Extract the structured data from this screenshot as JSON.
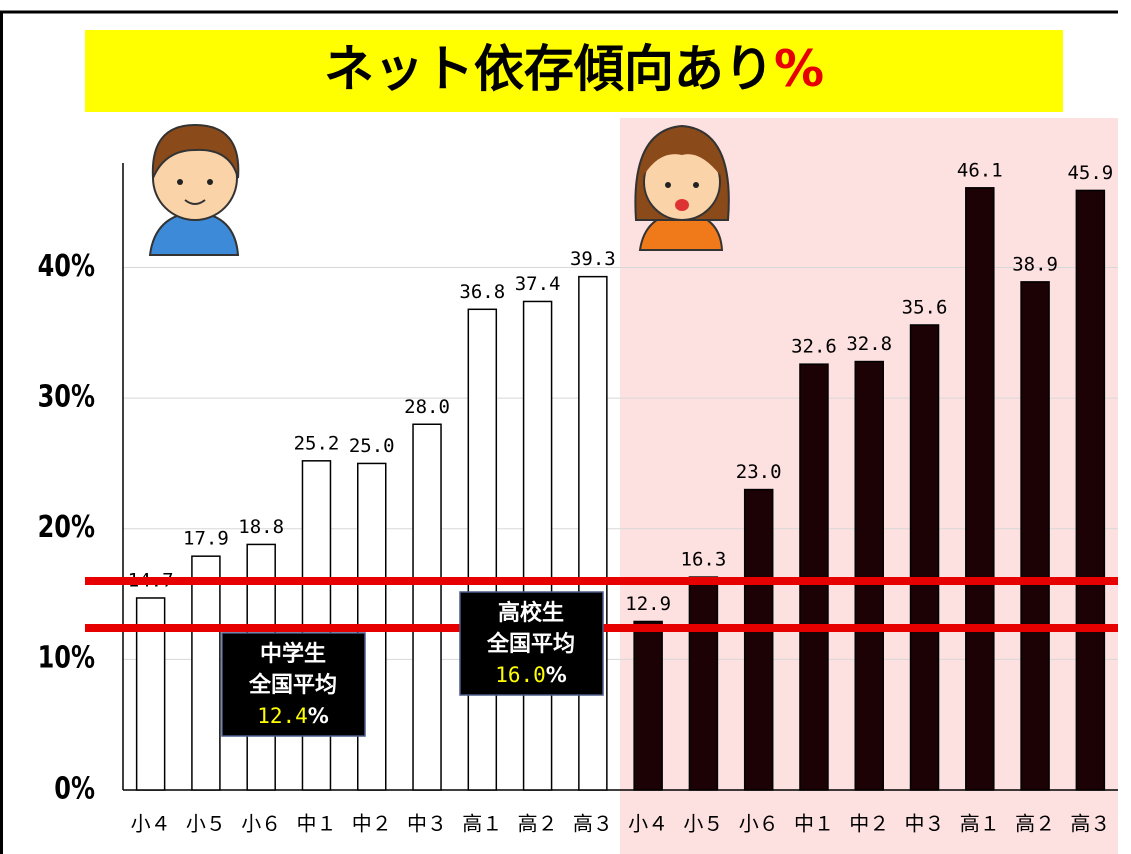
{
  "chart_data": {
    "type": "bar",
    "title": "ネット依存傾向あり",
    "title_unit": "%",
    "categories": [
      "小４",
      "小５",
      "小６",
      "中１",
      "中２",
      "中３",
      "高１",
      "高２",
      "高３"
    ],
    "series": [
      {
        "color": "#ffffff",
        "values": [
          14.7,
          17.9,
          18.8,
          25.2,
          25.0,
          28.0,
          36.8,
          37.4,
          39.3
        ],
        "value_labels": [
          "14.7",
          "17.9",
          "18.8",
          "25.2",
          "25.0",
          "28.0",
          "36.8",
          "37.4",
          "39.3"
        ]
      },
      {
        "color": "#1c0204",
        "values": [
          12.9,
          16.3,
          23.0,
          32.6,
          32.8,
          35.6,
          46.1,
          38.9,
          45.9
        ],
        "value_labels": [
          "12.9",
          "16.3",
          "23.0",
          "32.6",
          "32.8",
          "35.6",
          "46.1",
          "38.9",
          "45.9"
        ]
      }
    ],
    "ylim": [
      0,
      48
    ],
    "yticks": [
      {
        "value": 0,
        "label": "0%"
      },
      {
        "value": 10,
        "label": "10%"
      },
      {
        "value": 20,
        "label": "20%"
      },
      {
        "value": 30,
        "label": "30%"
      },
      {
        "value": 40,
        "label": "40%"
      }
    ],
    "grid": true,
    "reference_lines": [
      {
        "value": 12.4,
        "color": "#e60000",
        "label": [
          "中学生",
          "全国平均"
        ],
        "value_label": "12.4",
        "unit": "%"
      },
      {
        "value": 16.0,
        "color": "#e60000",
        "label": [
          "高校生",
          "全国平均"
        ],
        "value_label": "16.0",
        "unit": "%"
      }
    ]
  }
}
